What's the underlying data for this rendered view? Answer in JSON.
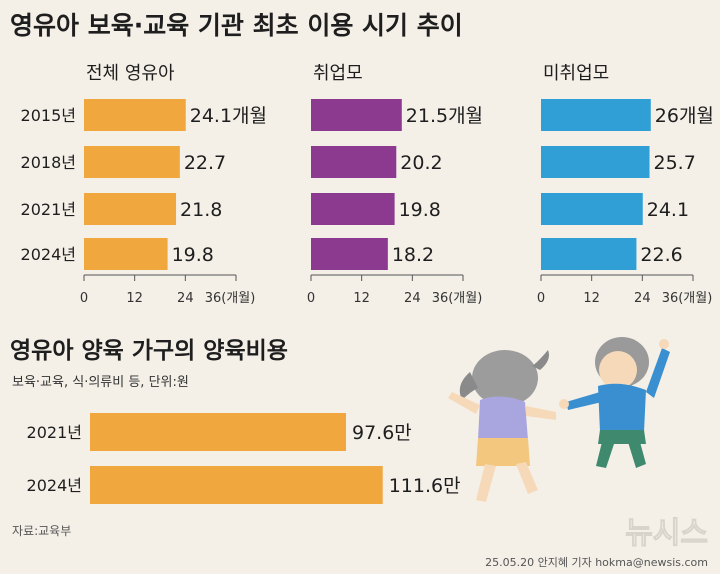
{
  "title": "영유아 보육·교육 기관 최초 이용 시기 추이",
  "section2_title": "영유아 양육 가구의 양육비용",
  "section2_note": "보육·교육, 식·의류비 등, 단위:원",
  "source": "자료:교육부",
  "brand": "뉴시스",
  "credit": "25.05.20 안지혜 기자 hokma@newsis.com",
  "colors": {
    "orange": "#f0a83e",
    "purple": "#8b3a8f",
    "blue": "#2f9fd6",
    "text": "#1e1e1e",
    "axis": "#555555",
    "background": "#f4f0e8"
  },
  "chart_data": [
    {
      "type": "bar",
      "orientation": "horizontal",
      "title": "전체 영유아",
      "categories": [
        "2015년",
        "2018년",
        "2021년",
        "2024년"
      ],
      "values": [
        24.1,
        22.7,
        21.8,
        19.8
      ],
      "value_labels": [
        "24.1개월",
        "22.7",
        "21.8",
        "19.8"
      ],
      "xlim": [
        0,
        36
      ],
      "xticks": [
        "0",
        "12",
        "24",
        "36(개월)"
      ],
      "color": "#f0a83e"
    },
    {
      "type": "bar",
      "orientation": "horizontal",
      "title": "취업모",
      "categories": [
        "2015년",
        "2018년",
        "2021년",
        "2024년"
      ],
      "values": [
        21.5,
        20.2,
        19.8,
        18.2
      ],
      "value_labels": [
        "21.5개월",
        "20.2",
        "19.8",
        "18.2"
      ],
      "xlim": [
        0,
        36
      ],
      "xticks": [
        "0",
        "12",
        "24",
        "36(개월)"
      ],
      "color": "#8b3a8f"
    },
    {
      "type": "bar",
      "orientation": "horizontal",
      "title": "미취업모",
      "categories": [
        "2015년",
        "2018년",
        "2021년",
        "2024년"
      ],
      "values": [
        26,
        25.7,
        24.1,
        22.6
      ],
      "value_labels": [
        "26개월",
        "25.7",
        "24.1",
        "22.6"
      ],
      "xlim": [
        0,
        36
      ],
      "xticks": [
        "0",
        "12",
        "24",
        "36(개월)"
      ],
      "color": "#2f9fd6"
    },
    {
      "type": "bar",
      "orientation": "horizontal",
      "title": "영유아 양육 가구의 양육비용",
      "categories": [
        "2021년",
        "2024년"
      ],
      "values": [
        97.6,
        111.6
      ],
      "value_labels": [
        "97.6만",
        "111.6만"
      ],
      "unit": "만원",
      "xlim": [
        0,
        140
      ],
      "color": "#f0a83e"
    }
  ]
}
